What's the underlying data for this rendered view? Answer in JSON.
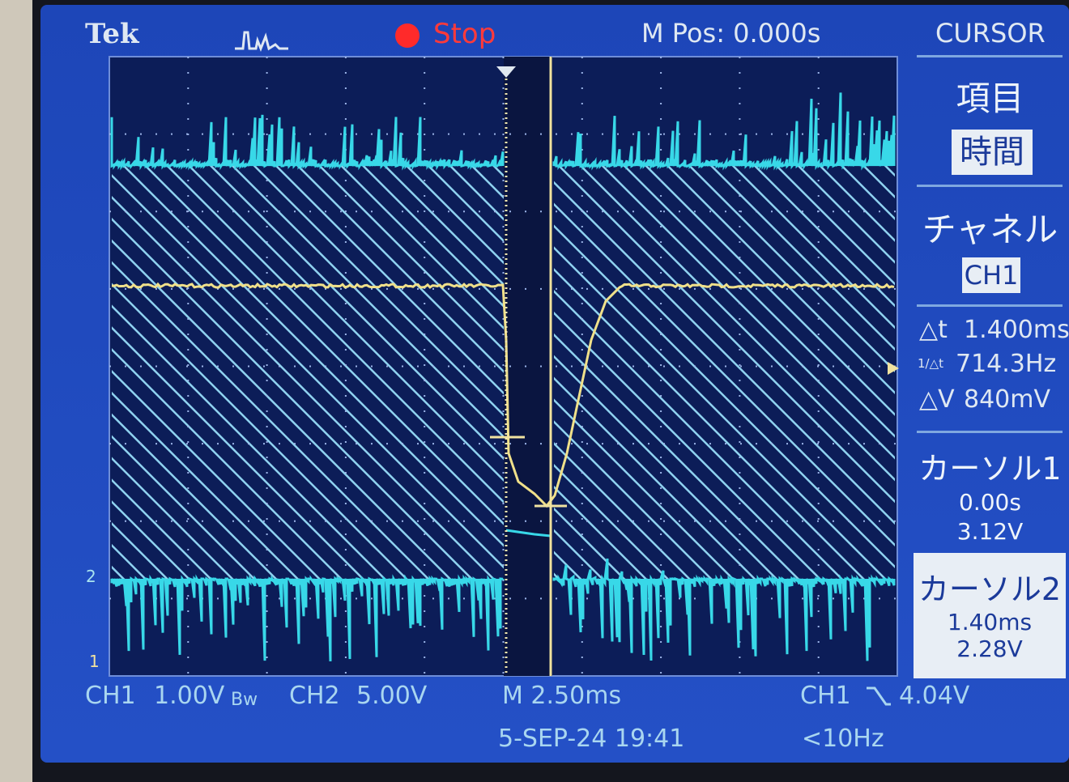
{
  "header": {
    "brand": "Tek",
    "state": "Stop",
    "position": "M Pos: 0.000s",
    "menu": "CURSOR"
  },
  "menu": {
    "type_label": "項目",
    "type_value": "時間",
    "channel_label": "チャネル",
    "channel_value": "CH1",
    "readouts": [
      {
        "label": "△t",
        "value": "1.400ms"
      },
      {
        "label": "1/△t",
        "value": "714.3Hz"
      },
      {
        "label": "△V",
        "value": "840mV"
      }
    ],
    "cursors": [
      {
        "label": "カーソル1",
        "time": "0.00s",
        "volts": "3.12V"
      },
      {
        "label": "カーソル2",
        "time": "1.40ms",
        "volts": "2.28V"
      }
    ]
  },
  "status": {
    "ch1_label": "CH1",
    "ch1_scale": "1.00V",
    "ch1_bw": "Bw",
    "ch2_label": "CH2",
    "ch2_scale": "5.00V",
    "timebase": "M 2.50ms",
    "trigger_source": "CH1",
    "trigger_level": "4.04V",
    "date": "5-SEP-24 19:41",
    "frequency": "<10Hz"
  },
  "markers": {
    "ch2": "2",
    "ch1": "1"
  }
}
